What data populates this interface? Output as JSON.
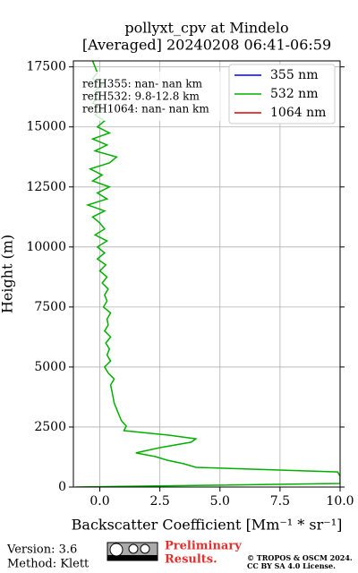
{
  "chart_data": {
    "type": "line",
    "title": "pollyxt_cpv at Mindelo",
    "subtitle": "[Averaged] 20240208 06:41-06:59",
    "x_label": "Backscatter Coefficient [Mm⁻¹ * sr⁻¹]",
    "y_label": "Height (m)",
    "xlim": [
      -1.1,
      10
    ],
    "xticks": [
      {
        "value": 0,
        "label": "0.0"
      },
      {
        "value": 2.5,
        "label": "2.5"
      },
      {
        "value": 5,
        "label": "5.0"
      },
      {
        "value": 7.5,
        "label": "7.5"
      },
      {
        "value": 10,
        "label": "10.0"
      }
    ],
    "ylim": [
      0,
      17750
    ],
    "yticks": [
      0,
      2500,
      5000,
      7500,
      10000,
      12500,
      15000,
      17500
    ],
    "grid": true,
    "legend": "upper right",
    "annotations": [
      "refH355:  nan- nan km",
      "refH532:  9.8-12.8 km",
      "refH1064:  nan- nan km"
    ],
    "y": [
      0,
      150,
      300,
      450,
      630,
      820,
      970,
      1120,
      1270,
      1420,
      1640,
      1870,
      2010,
      2160,
      2350,
      2540,
      2760,
      3000,
      3250,
      3500,
      3750,
      4000,
      4250,
      4500,
      4750,
      5000,
      5250,
      5500,
      5750,
      6000,
      6250,
      6500,
      6750,
      7000,
      7250,
      7500,
      7750,
      8000,
      8250,
      8500,
      8750,
      9000,
      9250,
      9500,
      9750,
      10000,
      10250,
      10500,
      10750,
      11000,
      11250,
      11500,
      11750,
      12000,
      12250,
      12500,
      12750,
      13000,
      13250,
      13500,
      13750,
      14000,
      14250,
      14500,
      14750,
      15000,
      15250,
      15500,
      15750,
      16000,
      16250,
      16500,
      16750,
      17000,
      17250,
      17500,
      17750
    ],
    "series": [
      {
        "name": "355 nm",
        "color": "#0000ff",
        "values": [
          null,
          null,
          null,
          null,
          null,
          null,
          null,
          null,
          null,
          null,
          null,
          null,
          null,
          null,
          null,
          null,
          null,
          null,
          null,
          null,
          null,
          null,
          null,
          null,
          null,
          null,
          null,
          null,
          null,
          null,
          null,
          null,
          null,
          null,
          null,
          null,
          null,
          null,
          null,
          null,
          null,
          null,
          null,
          null,
          null,
          null,
          null,
          null,
          null,
          null,
          null,
          null,
          null,
          null,
          null,
          null,
          null,
          null,
          null,
          null,
          null,
          null,
          null,
          null,
          null,
          null,
          null,
          null,
          null,
          null,
          null,
          null,
          null,
          null,
          null,
          null,
          null
        ]
      },
      {
        "name": "532 nm",
        "color": "#00b000",
        "values": [
          -1.0,
          10,
          10,
          10,
          9.9,
          4.0,
          3.5,
          2.8,
          2.3,
          1.5,
          2.5,
          3.8,
          4.0,
          2.9,
          1.0,
          1.1,
          0.9,
          0.8,
          0.7,
          0.6,
          0.55,
          0.5,
          0.45,
          0.6,
          0.35,
          0.2,
          0.45,
          0.3,
          0.4,
          0.25,
          0.45,
          0.2,
          0.35,
          0.3,
          0.45,
          0.15,
          0.3,
          0.2,
          0.35,
          0.1,
          0.3,
          0.0,
          0.25,
          -0.1,
          0.2,
          -0.1,
          0.3,
          -0.2,
          0.2,
          0.0,
          -0.3,
          0.2,
          -0.5,
          0.3,
          -0.1,
          0.4,
          -0.3,
          0.1,
          -0.4,
          0.4,
          0.7,
          -0.2,
          0.3,
          -0.3,
          0.4,
          -0.1,
          0.2,
          -0.2,
          0.1,
          -0.3,
          0.0,
          -0.2,
          0.1,
          -0.3,
          -0.1,
          -0.2,
          -0.3
        ]
      },
      {
        "name": "1064 nm",
        "color": "#dd0000",
        "values": [
          null,
          null,
          null,
          null,
          null,
          null,
          null,
          null,
          null,
          null,
          null,
          null,
          null,
          null,
          null,
          null,
          null,
          null,
          null,
          null,
          null,
          null,
          null,
          null,
          null,
          null,
          null,
          null,
          null,
          null,
          null,
          null,
          null,
          null,
          null,
          null,
          null,
          null,
          null,
          null,
          null,
          null,
          null,
          null,
          null,
          null,
          null,
          null,
          null,
          null,
          null,
          null,
          null,
          null,
          null,
          null,
          null,
          null,
          null,
          null,
          null,
          null,
          null,
          null,
          null,
          null,
          null,
          null,
          null,
          null,
          null,
          null,
          null,
          null,
          null,
          null,
          null
        ]
      }
    ]
  },
  "footer": {
    "version": "Version: 3.6",
    "method": "Method: Klett",
    "notice": [
      "Preliminary",
      "Results."
    ],
    "copyright": [
      "© TROPOS & OSCM 2024.",
      "CC BY SA 4.0 License."
    ]
  }
}
